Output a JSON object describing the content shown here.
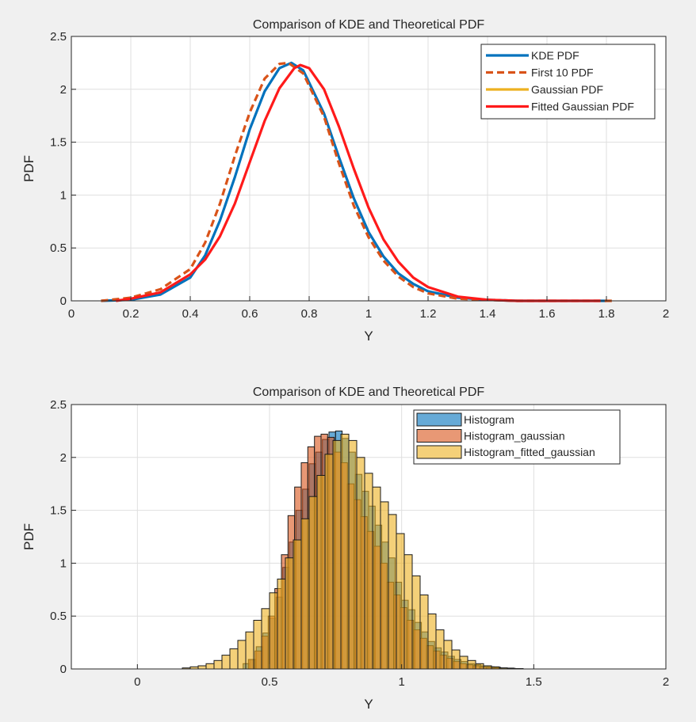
{
  "chart_data": [
    {
      "type": "line",
      "title": "Comparison of KDE and Theoretical PDF",
      "xlabel": "Y",
      "ylabel": "PDF",
      "xlim": [
        0,
        2
      ],
      "ylim": [
        0,
        2.5
      ],
      "xticks": [
        "0",
        "0.2",
        "0.4",
        "0.6",
        "0.8",
        "1",
        "1.2",
        "1.4",
        "1.6",
        "1.8",
        "2"
      ],
      "yticks": [
        "0",
        "0.5",
        "1",
        "1.5",
        "2",
        "2.5"
      ],
      "grid": true,
      "legend_position": "top-right",
      "series": [
        {
          "name": "KDE PDF",
          "color": "#0072BD",
          "style": "solid",
          "x": [
            0.1,
            0.2,
            0.3,
            0.4,
            0.45,
            0.5,
            0.55,
            0.6,
            0.65,
            0.7,
            0.74,
            0.78,
            0.85,
            0.9,
            0.95,
            1.0,
            1.05,
            1.1,
            1.15,
            1.2,
            1.3,
            1.4,
            1.5,
            1.6,
            1.7,
            1.8
          ],
          "y": [
            0.0,
            0.01,
            0.06,
            0.22,
            0.43,
            0.76,
            1.17,
            1.62,
            1.98,
            2.2,
            2.25,
            2.18,
            1.77,
            1.36,
            0.97,
            0.65,
            0.42,
            0.26,
            0.16,
            0.09,
            0.03,
            0.01,
            0.0,
            0.0,
            0.0,
            0.0
          ]
        },
        {
          "name": "First 10 PDF",
          "color": "#D95319",
          "style": "dashed",
          "x": [
            0.1,
            0.2,
            0.3,
            0.4,
            0.45,
            0.5,
            0.55,
            0.6,
            0.65,
            0.7,
            0.73,
            0.78,
            0.85,
            0.9,
            0.95,
            1.0,
            1.05,
            1.1,
            1.15,
            1.2,
            1.3,
            1.4,
            1.5,
            1.6,
            1.7,
            1.82
          ],
          "y": [
            0.0,
            0.03,
            0.11,
            0.3,
            0.55,
            0.92,
            1.37,
            1.78,
            2.1,
            2.24,
            2.25,
            2.15,
            1.74,
            1.3,
            0.9,
            0.6,
            0.38,
            0.23,
            0.13,
            0.07,
            0.02,
            0.01,
            0.0,
            0.0,
            0.0,
            0.0
          ]
        },
        {
          "name": "Gaussian PDF",
          "color": "#EDB120",
          "style": "solid",
          "x": [],
          "y": []
        },
        {
          "name": "Fitted Gaussian PDF",
          "color": "#FF1A1A",
          "style": "solid",
          "x": [
            0.15,
            0.2,
            0.3,
            0.4,
            0.45,
            0.5,
            0.55,
            0.6,
            0.65,
            0.7,
            0.75,
            0.77,
            0.8,
            0.85,
            0.9,
            0.95,
            1.0,
            1.05,
            1.1,
            1.15,
            1.2,
            1.3,
            1.4,
            1.5,
            1.6,
            1.7,
            1.78
          ],
          "y": [
            0.0,
            0.02,
            0.08,
            0.25,
            0.39,
            0.61,
            0.92,
            1.31,
            1.7,
            2.01,
            2.2,
            2.23,
            2.2,
            2.0,
            1.65,
            1.25,
            0.88,
            0.58,
            0.37,
            0.22,
            0.13,
            0.04,
            0.01,
            0.0,
            0.0,
            0.0,
            0.0
          ]
        }
      ]
    },
    {
      "type": "bar",
      "title": "Comparison of KDE and Theoretical PDF",
      "xlabel": "Y",
      "ylabel": "PDF",
      "xlim": [
        -0.25,
        2
      ],
      "ylim": [
        0,
        2.5
      ],
      "xticks": [
        "0",
        "0.5",
        "1",
        "1.5",
        "2"
      ],
      "yticks": [
        "0",
        "0.5",
        "1",
        "1.5",
        "2",
        "2.5"
      ],
      "grid": true,
      "legend_position": "top-right",
      "series": [
        {
          "name": "Histogram",
          "color": "#0072BD",
          "bins": [
            [
              0.4,
              0.05
            ],
            [
              0.425,
              0.09
            ],
            [
              0.45,
              0.21
            ],
            [
              0.475,
              0.34
            ],
            [
              0.5,
              0.48
            ],
            [
              0.525,
              0.68
            ],
            [
              0.55,
              0.96
            ],
            [
              0.575,
              1.2
            ],
            [
              0.6,
              1.5
            ],
            [
              0.625,
              1.7
            ],
            [
              0.65,
              1.94
            ],
            [
              0.675,
              2.05
            ],
            [
              0.7,
              2.17
            ],
            [
              0.725,
              2.24
            ],
            [
              0.75,
              2.25
            ],
            [
              0.775,
              2.18
            ],
            [
              0.8,
              2.05
            ],
            [
              0.825,
              1.84
            ],
            [
              0.85,
              1.68
            ],
            [
              0.875,
              1.54
            ],
            [
              0.9,
              1.36
            ],
            [
              0.925,
              1.2
            ],
            [
              0.95,
              1.05
            ],
            [
              0.975,
              0.82
            ],
            [
              1.0,
              0.65
            ],
            [
              1.025,
              0.56
            ],
            [
              1.05,
              0.44
            ],
            [
              1.075,
              0.35
            ],
            [
              1.1,
              0.26
            ],
            [
              1.125,
              0.2
            ],
            [
              1.15,
              0.16
            ],
            [
              1.175,
              0.12
            ],
            [
              1.2,
              0.09
            ],
            [
              1.225,
              0.07
            ],
            [
              1.25,
              0.05
            ],
            [
              1.275,
              0.04
            ],
            [
              1.3,
              0.03
            ],
            [
              1.325,
              0.02
            ],
            [
              1.35,
              0.015
            ],
            [
              1.375,
              0.01
            ],
            [
              1.4,
              0.008
            ]
          ]
        },
        {
          "name": "Histogram_gaussian",
          "color": "#D95319",
          "bins": [
            [
              0.42,
              0.09
            ],
            [
              0.445,
              0.17
            ],
            [
              0.47,
              0.31
            ],
            [
              0.495,
              0.5
            ],
            [
              0.52,
              0.76
            ],
            [
              0.545,
              1.08
            ],
            [
              0.57,
              1.45
            ],
            [
              0.595,
              1.72
            ],
            [
              0.62,
              1.95
            ],
            [
              0.645,
              2.1
            ],
            [
              0.67,
              2.2
            ],
            [
              0.695,
              2.22
            ],
            [
              0.72,
              2.19
            ],
            [
              0.745,
              2.05
            ],
            [
              0.77,
              1.95
            ],
            [
              0.795,
              1.75
            ],
            [
              0.82,
              1.6
            ],
            [
              0.845,
              1.44
            ],
            [
              0.87,
              1.3
            ],
            [
              0.895,
              1.16
            ],
            [
              0.92,
              1.0
            ],
            [
              0.945,
              0.82
            ],
            [
              0.97,
              0.7
            ],
            [
              0.995,
              0.58
            ],
            [
              1.02,
              0.46
            ],
            [
              1.045,
              0.37
            ],
            [
              1.07,
              0.29
            ],
            [
              1.095,
              0.22
            ],
            [
              1.12,
              0.17
            ],
            [
              1.145,
              0.13
            ],
            [
              1.17,
              0.1
            ],
            [
              1.195,
              0.07
            ],
            [
              1.22,
              0.05
            ],
            [
              1.245,
              0.04
            ],
            [
              1.27,
              0.03
            ],
            [
              1.295,
              0.02
            ],
            [
              1.32,
              0.015
            ],
            [
              1.345,
              0.01
            ]
          ]
        },
        {
          "name": "Histogram_fitted_gaussian",
          "color": "#EDB120",
          "bins": [
            [
              0.17,
              0.01
            ],
            [
              0.2,
              0.02
            ],
            [
              0.23,
              0.03
            ],
            [
              0.26,
              0.05
            ],
            [
              0.29,
              0.08
            ],
            [
              0.32,
              0.13
            ],
            [
              0.35,
              0.19
            ],
            [
              0.38,
              0.27
            ],
            [
              0.41,
              0.35
            ],
            [
              0.44,
              0.46
            ],
            [
              0.47,
              0.57
            ],
            [
              0.5,
              0.72
            ],
            [
              0.53,
              0.85
            ],
            [
              0.56,
              1.05
            ],
            [
              0.59,
              1.22
            ],
            [
              0.62,
              1.42
            ],
            [
              0.65,
              1.63
            ],
            [
              0.68,
              1.83
            ],
            [
              0.71,
              2.03
            ],
            [
              0.74,
              2.16
            ],
            [
              0.77,
              2.22
            ],
            [
              0.8,
              2.16
            ],
            [
              0.83,
              2.0
            ],
            [
              0.86,
              1.85
            ],
            [
              0.89,
              1.72
            ],
            [
              0.92,
              1.58
            ],
            [
              0.95,
              1.46
            ],
            [
              0.98,
              1.28
            ],
            [
              1.01,
              1.08
            ],
            [
              1.04,
              0.88
            ],
            [
              1.07,
              0.7
            ],
            [
              1.1,
              0.52
            ],
            [
              1.13,
              0.37
            ],
            [
              1.16,
              0.27
            ],
            [
              1.19,
              0.18
            ],
            [
              1.22,
              0.12
            ],
            [
              1.25,
              0.08
            ],
            [
              1.28,
              0.05
            ],
            [
              1.31,
              0.03
            ],
            [
              1.34,
              0.02
            ],
            [
              1.37,
              0.01
            ],
            [
              1.4,
              0.006
            ],
            [
              1.43,
              0.004
            ]
          ]
        }
      ]
    }
  ]
}
